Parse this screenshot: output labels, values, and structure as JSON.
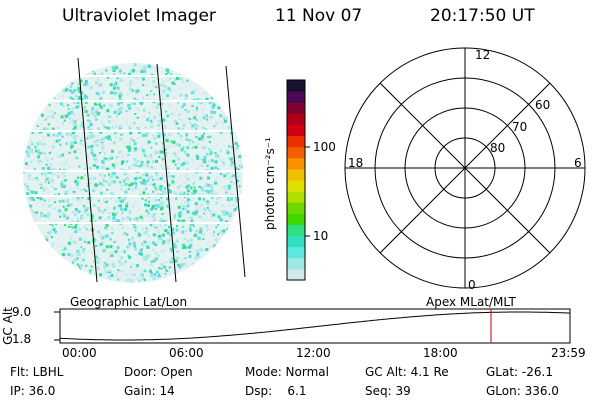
{
  "header": {
    "instrument": "Ultraviolet Imager",
    "date": "11 Nov 07",
    "time": "20:17:50 UT"
  },
  "imager": {
    "label": "Geographic Lat/Lon"
  },
  "colorbar": {
    "units_label": "photon cm⁻²s⁻¹",
    "ticks": [
      "100",
      "10"
    ],
    "colors": [
      "#1a1030",
      "#4a0a55",
      "#800030",
      "#b00018",
      "#d00010",
      "#e83000",
      "#f06000",
      "#f89000",
      "#f0c000",
      "#e0e000",
      "#b0e000",
      "#70d800",
      "#40d800",
      "#30e080",
      "#30e0c0",
      "#60e8e0",
      "#a0e8e8",
      "#d0e8e8"
    ]
  },
  "polar": {
    "lat_labels": [
      "60",
      "70",
      "80"
    ],
    "mlt_labels": {
      "top": "12",
      "bottom": "0",
      "left": "18",
      "right": "6"
    },
    "label": "Apex MLat/MLT"
  },
  "altitude_plot": {
    "ylabel": "GC Alt",
    "yticks": [
      "9.0",
      "1.8"
    ],
    "xticks": [
      "00:00",
      "06:00",
      "12:00",
      "18:00",
      "23:59"
    ],
    "marker_color": "#cc0000"
  },
  "info": {
    "flt": "Flt: LBHL",
    "ip": "IP: 36.0",
    "door": "Door: Open",
    "gain": "Gain: 14",
    "mode": "Mode: Normal",
    "dsp": "Dsp:    6.1",
    "gcalt": "GC Alt: 4.1 Re",
    "seq": "Seq: 39",
    "glat": "GLat: -26.1",
    "glon": "GLon: 336.0"
  }
}
